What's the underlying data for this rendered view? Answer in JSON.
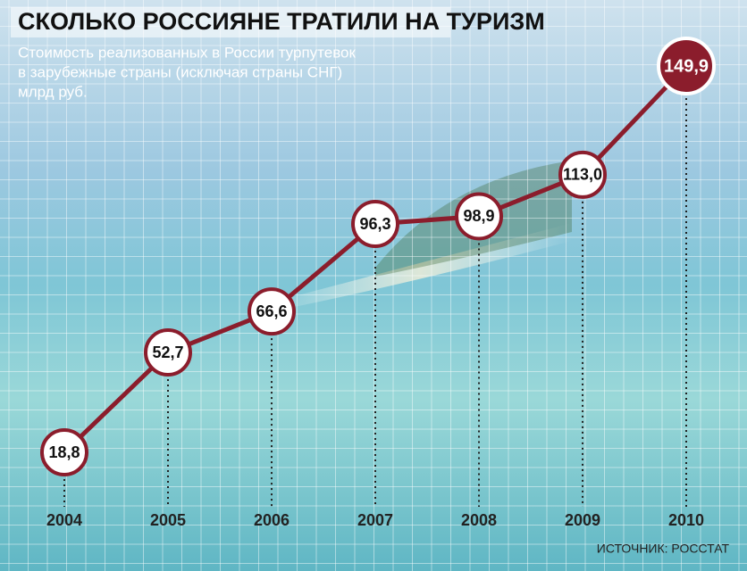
{
  "chart_data": {
    "type": "line",
    "title": "СКОЛЬКО РОССИЯНЕ ТРАТИЛИ НА ТУРИЗМ",
    "subtitle": [
      "Стоимость реализованных в России турпутевок",
      "в зарубежные страны (исключая страны СНГ)",
      "млрд руб."
    ],
    "categories": [
      "2004",
      "2005",
      "2006",
      "2007",
      "2008",
      "2009",
      "2010"
    ],
    "values": [
      18.8,
      52.7,
      66.6,
      96.3,
      98.9,
      113.0,
      149.9
    ],
    "value_labels": [
      "18,8",
      "52,7",
      "66,6",
      "96,3",
      "98,9",
      "113,0",
      "149,9"
    ],
    "color": "#8b1d2c",
    "source": "ИСТОЧНИК: РОССТАТ"
  }
}
